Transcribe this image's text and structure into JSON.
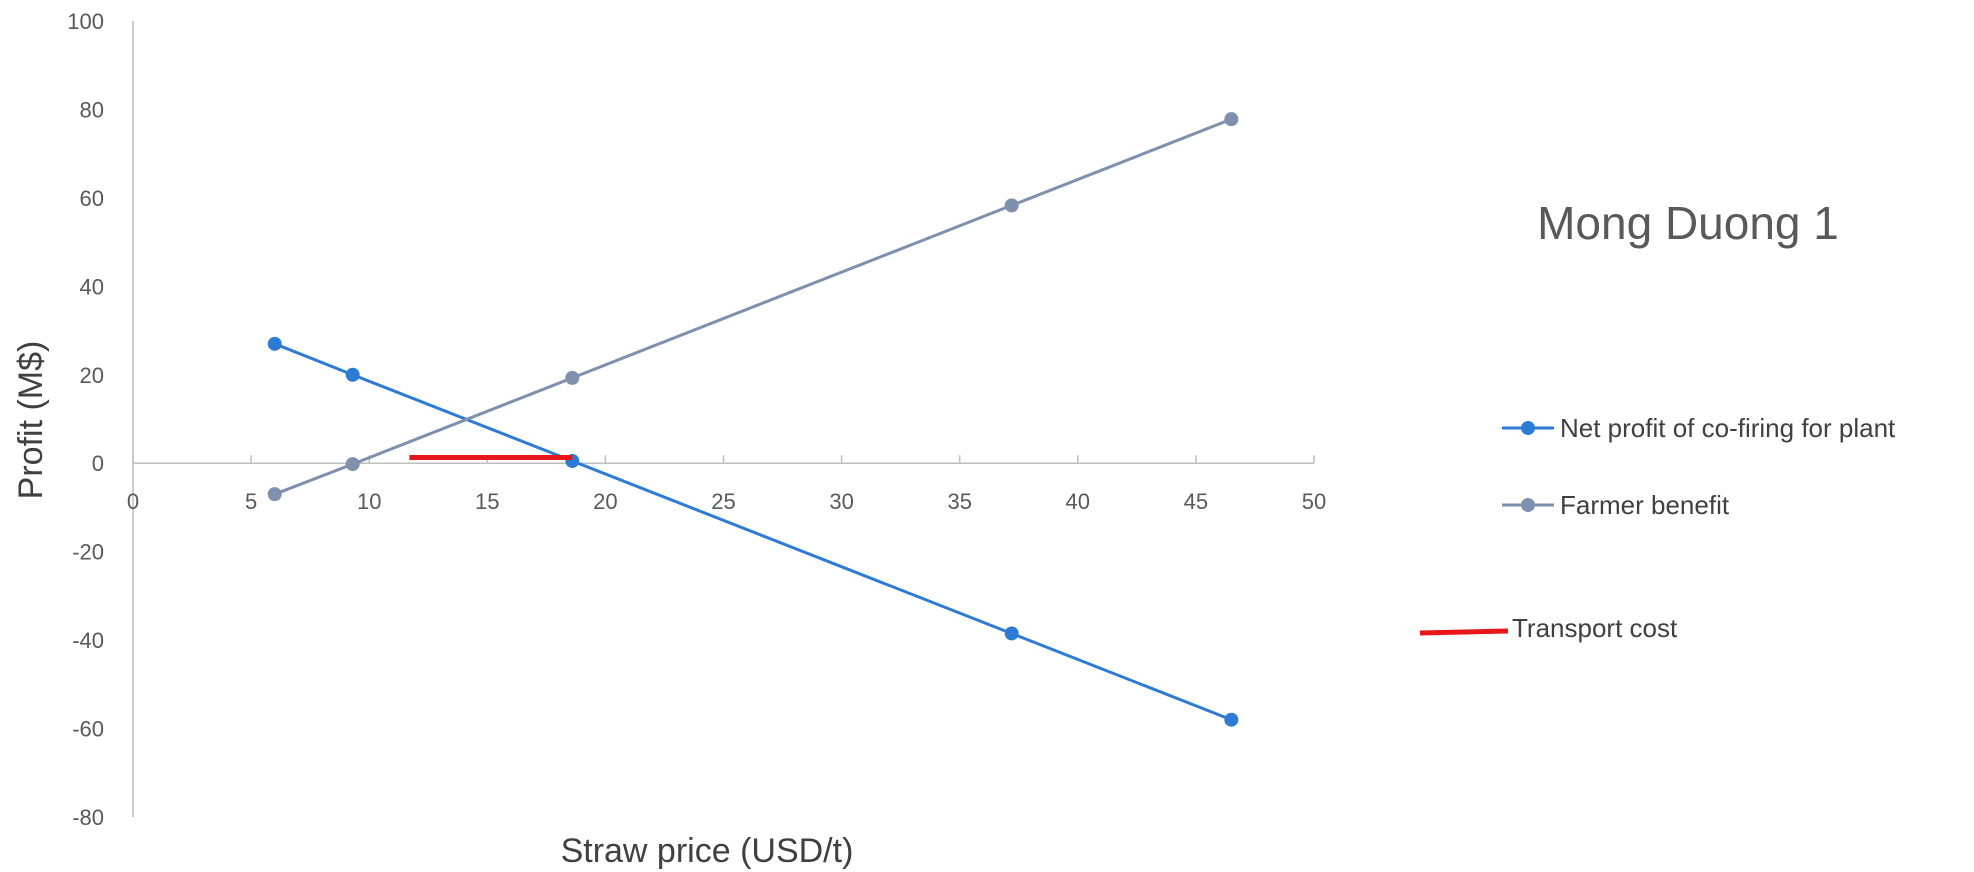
{
  "chart_data": {
    "type": "line",
    "title": "Mong Duong 1",
    "xlabel": "Straw price (USD/t)",
    "ylabel": "Profit (M$)",
    "xlim": [
      0,
      50
    ],
    "ylim": [
      -80,
      100
    ],
    "x_ticks": [
      0,
      5,
      10,
      15,
      20,
      25,
      30,
      35,
      40,
      45,
      50
    ],
    "y_ticks": [
      100,
      80,
      60,
      40,
      20,
      0,
      -20,
      -40,
      -60,
      -80
    ],
    "grid": false,
    "legend_position": "right",
    "series": [
      {
        "name": "Net profit of co-firing for plant",
        "color": "#2E7BD6",
        "marker": "circle",
        "points": [
          [
            6.0,
            27.0
          ],
          [
            9.3,
            20.0
          ],
          [
            18.6,
            0.5
          ],
          [
            37.2,
            -38.5
          ],
          [
            46.5,
            -58.0
          ]
        ]
      },
      {
        "name": "Farmer benefit",
        "color": "#7F8FAE",
        "marker": "circle",
        "points": [
          [
            6.0,
            -7.0
          ],
          [
            9.3,
            -0.2
          ],
          [
            18.6,
            19.3
          ],
          [
            37.2,
            58.3
          ],
          [
            46.5,
            77.8
          ]
        ]
      },
      {
        "name": "Transport cost",
        "color": "#E8161B",
        "marker": "none",
        "points": [
          [
            11.7,
            1.3
          ],
          [
            18.6,
            1.3
          ]
        ]
      }
    ]
  }
}
